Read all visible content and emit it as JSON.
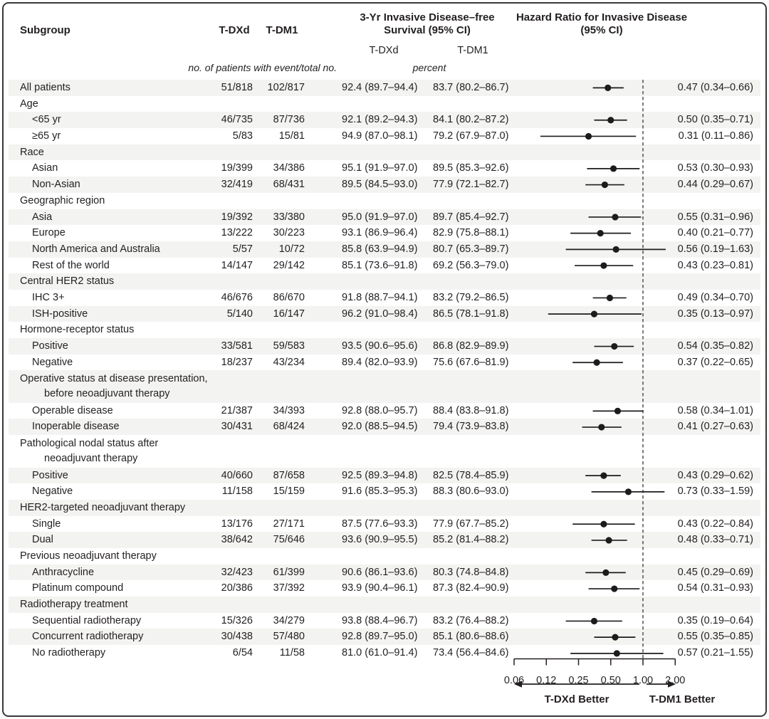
{
  "header": {
    "subgroup": "Subgroup",
    "tdxd": "T-DXd",
    "tdm1": "T-DM1",
    "survival_title_line1": "3-Yr Invasive Disease–free",
    "survival_title_line2": "Survival (95% CI)",
    "survival_sub_tdxd": "T-DXd",
    "survival_sub_tdm1": "T-DM1",
    "hazard_title_line1": "Hazard Ratio for Invasive Disease",
    "hazard_title_line2": "(95% CI)",
    "events_note": "no. of patients with event/total no.",
    "percent_note": "percent"
  },
  "axis": {
    "scale": "log2",
    "reference_value": 1.0,
    "tick_values": [
      0.0625,
      0.125,
      0.25,
      0.5,
      1.0,
      2.0
    ],
    "tick_labels": [
      "0.06",
      "0.12",
      "0.25",
      "0.50",
      "1.00",
      "2.00"
    ],
    "left_label": "T-DXd Better",
    "right_label": "T-DM1 Better"
  },
  "colors": {
    "row_shade": "#f3f3f1",
    "text": "#231f20",
    "marker": "#1c1c1c",
    "reference_line": "#444444"
  },
  "chart_data": {
    "type": "scatter",
    "subtype": "forest-plot",
    "title": "Hazard Ratio for Invasive Disease (95% CI)",
    "x_axis": {
      "scale": "log2",
      "range": [
        0.0625,
        2.0
      ],
      "ticks": [
        0.0625,
        0.125,
        0.25,
        0.5,
        1.0,
        2.0
      ],
      "tick_labels": [
        "0.06",
        "0.12",
        "0.25",
        "0.50",
        "1.00",
        "2.00"
      ],
      "reference_line": 1.0
    },
    "rows": [
      {
        "group": false,
        "indent": 0,
        "lines": 1,
        "label": "All patients",
        "e1": "51/818",
        "e2": "102/817",
        "s1": "92.4 (89.7–94.4)",
        "s2": "83.7 (80.2–86.7)",
        "hr": 0.47,
        "lo": 0.34,
        "hi": 0.66,
        "hr_text": "0.47 (0.34–0.66)"
      },
      {
        "group": true,
        "indent": 0,
        "lines": 1,
        "label": "Age"
      },
      {
        "group": false,
        "indent": 1,
        "lines": 1,
        "label": "<65 yr",
        "e1": "46/735",
        "e2": "87/736",
        "s1": "92.1 (89.2–94.3)",
        "s2": "84.1 (80.2–87.2)",
        "hr": 0.5,
        "lo": 0.35,
        "hi": 0.71,
        "hr_text": "0.50 (0.35–0.71)"
      },
      {
        "group": false,
        "indent": 1,
        "lines": 1,
        "label": "≥65 yr",
        "e1": "5/83",
        "e2": "15/81",
        "s1": "94.9 (87.0–98.1)",
        "s2": "79.2 (67.9–87.0)",
        "hr": 0.31,
        "lo": 0.11,
        "hi": 0.86,
        "hr_text": "0.31 (0.11–0.86)"
      },
      {
        "group": true,
        "indent": 0,
        "lines": 1,
        "label": "Race"
      },
      {
        "group": false,
        "indent": 1,
        "lines": 1,
        "label": "Asian",
        "e1": "19/399",
        "e2": "34/386",
        "s1": "95.1 (91.9–97.0)",
        "s2": "89.5 (85.3–92.6)",
        "hr": 0.53,
        "lo": 0.3,
        "hi": 0.93,
        "hr_text": "0.53 (0.30–0.93)"
      },
      {
        "group": false,
        "indent": 1,
        "lines": 1,
        "label": "Non-Asian",
        "e1": "32/419",
        "e2": "68/431",
        "s1": "89.5 (84.5–93.0)",
        "s2": "77.9 (72.1–82.7)",
        "hr": 0.44,
        "lo": 0.29,
        "hi": 0.67,
        "hr_text": "0.44 (0.29–0.67)"
      },
      {
        "group": true,
        "indent": 0,
        "lines": 1,
        "label": "Geographic region"
      },
      {
        "group": false,
        "indent": 1,
        "lines": 1,
        "label": "Asia",
        "e1": "19/392",
        "e2": "33/380",
        "s1": "95.0 (91.9–97.0)",
        "s2": "89.7 (85.4–92.7)",
        "hr": 0.55,
        "lo": 0.31,
        "hi": 0.96,
        "hr_text": "0.55 (0.31–0.96)"
      },
      {
        "group": false,
        "indent": 1,
        "lines": 1,
        "label": "Europe",
        "e1": "13/222",
        "e2": "30/223",
        "s1": "93.1 (86.9–96.4)",
        "s2": "82.9 (75.8–88.1)",
        "hr": 0.4,
        "lo": 0.21,
        "hi": 0.77,
        "hr_text": "0.40 (0.21–0.77)"
      },
      {
        "group": false,
        "indent": 1,
        "lines": 1,
        "label": "North America and Australia",
        "e1": "5/57",
        "e2": "10/72",
        "s1": "85.8 (63.9–94.9)",
        "s2": "80.7 (65.3–89.7)",
        "hr": 0.56,
        "lo": 0.19,
        "hi": 1.63,
        "hr_text": "0.56 (0.19–1.63)"
      },
      {
        "group": false,
        "indent": 1,
        "lines": 1,
        "label": "Rest of the world",
        "e1": "14/147",
        "e2": "29/142",
        "s1": "85.1 (73.6–91.8)",
        "s2": "69.2 (56.3–79.0)",
        "hr": 0.43,
        "lo": 0.23,
        "hi": 0.81,
        "hr_text": "0.43 (0.23–0.81)"
      },
      {
        "group": true,
        "indent": 0,
        "lines": 1,
        "label": "Central HER2 status"
      },
      {
        "group": false,
        "indent": 1,
        "lines": 1,
        "label": "IHC 3+",
        "e1": "46/676",
        "e2": "86/670",
        "s1": "91.8 (88.7–94.1)",
        "s2": "83.2 (79.2–86.5)",
        "hr": 0.49,
        "lo": 0.34,
        "hi": 0.7,
        "hr_text": "0.49 (0.34–0.70)"
      },
      {
        "group": false,
        "indent": 1,
        "lines": 1,
        "label": "ISH-positive",
        "e1": "5/140",
        "e2": "16/147",
        "s1": "96.2 (91.0–98.4)",
        "s2": "86.5 (78.1–91.8)",
        "hr": 0.35,
        "lo": 0.13,
        "hi": 0.97,
        "hr_text": "0.35 (0.13–0.97)"
      },
      {
        "group": true,
        "indent": 0,
        "lines": 1,
        "label": "Hormone-receptor status"
      },
      {
        "group": false,
        "indent": 1,
        "lines": 1,
        "label": "Positive",
        "e1": "33/581",
        "e2": "59/583",
        "s1": "93.5 (90.6–95.6)",
        "s2": "86.8 (82.9–89.9)",
        "hr": 0.54,
        "lo": 0.35,
        "hi": 0.82,
        "hr_text": "0.54 (0.35–0.82)"
      },
      {
        "group": false,
        "indent": 1,
        "lines": 1,
        "label": "Negative",
        "e1": "18/237",
        "e2": "43/234",
        "s1": "89.4 (82.0–93.9)",
        "s2": "75.6 (67.6–81.9)",
        "hr": 0.37,
        "lo": 0.22,
        "hi": 0.65,
        "hr_text": "0.37 (0.22–0.65)"
      },
      {
        "group": true,
        "indent": 0,
        "lines": 2,
        "label": "Operative status at disease presentation,",
        "label2": "before neoadjuvant therapy"
      },
      {
        "group": false,
        "indent": 1,
        "lines": 1,
        "label": "Operable disease",
        "e1": "21/387",
        "e2": "34/393",
        "s1": "92.8 (88.0–95.7)",
        "s2": "88.4 (83.8–91.8)",
        "hr": 0.58,
        "lo": 0.34,
        "hi": 1.01,
        "hr_text": "0.58 (0.34–1.01)"
      },
      {
        "group": false,
        "indent": 1,
        "lines": 1,
        "label": "Inoperable disease",
        "e1": "30/431",
        "e2": "68/424",
        "s1": "92.0 (88.5–94.5)",
        "s2": "79.4 (73.9–83.8)",
        "hr": 0.41,
        "lo": 0.27,
        "hi": 0.63,
        "hr_text": "0.41 (0.27–0.63)"
      },
      {
        "group": true,
        "indent": 0,
        "lines": 2,
        "label": "Pathological nodal status after",
        "label2": "neoadjuvant therapy"
      },
      {
        "group": false,
        "indent": 1,
        "lines": 1,
        "label": "Positive",
        "e1": "40/660",
        "e2": "87/658",
        "s1": "92.5 (89.3–94.8)",
        "s2": "82.5 (78.4–85.9)",
        "hr": 0.43,
        "lo": 0.29,
        "hi": 0.62,
        "hr_text": "0.43 (0.29–0.62)"
      },
      {
        "group": false,
        "indent": 1,
        "lines": 1,
        "label": "Negative",
        "e1": "11/158",
        "e2": "15/159",
        "s1": "91.6 (85.3–95.3)",
        "s2": "88.3 (80.6–93.0)",
        "hr": 0.73,
        "lo": 0.33,
        "hi": 1.59,
        "hr_text": "0.73 (0.33–1.59)"
      },
      {
        "group": true,
        "indent": 0,
        "lines": 1,
        "label": "HER2-targeted neoadjuvant therapy"
      },
      {
        "group": false,
        "indent": 1,
        "lines": 1,
        "label": "Single",
        "e1": "13/176",
        "e2": "27/171",
        "s1": "87.5 (77.6–93.3)",
        "s2": "77.9 (67.7–85.2)",
        "hr": 0.43,
        "lo": 0.22,
        "hi": 0.84,
        "hr_text": "0.43 (0.22–0.84)"
      },
      {
        "group": false,
        "indent": 1,
        "lines": 1,
        "label": "Dual",
        "e1": "38/642",
        "e2": "75/646",
        "s1": "93.6 (90.9–95.5)",
        "s2": "85.2 (81.4–88.2)",
        "hr": 0.48,
        "lo": 0.33,
        "hi": 0.71,
        "hr_text": "0.48 (0.33–0.71)"
      },
      {
        "group": true,
        "indent": 0,
        "lines": 1,
        "label": "Previous neoadjuvant therapy"
      },
      {
        "group": false,
        "indent": 1,
        "lines": 1,
        "label": "Anthracycline",
        "e1": "32/423",
        "e2": "61/399",
        "s1": "90.6 (86.1–93.6)",
        "s2": "80.3 (74.8–84.8)",
        "hr": 0.45,
        "lo": 0.29,
        "hi": 0.69,
        "hr_text": "0.45 (0.29–0.69)"
      },
      {
        "group": false,
        "indent": 1,
        "lines": 1,
        "label": "Platinum compound",
        "e1": "20/386",
        "e2": "37/392",
        "s1": "93.9 (90.4–96.1)",
        "s2": "87.3 (82.4–90.9)",
        "hr": 0.54,
        "lo": 0.31,
        "hi": 0.93,
        "hr_text": "0.54 (0.31–0.93)"
      },
      {
        "group": true,
        "indent": 0,
        "lines": 1,
        "label": "Radiotherapy treatment"
      },
      {
        "group": false,
        "indent": 1,
        "lines": 1,
        "label": "Sequential radiotherapy",
        "e1": "15/326",
        "e2": "34/279",
        "s1": "93.8 (88.4–96.7)",
        "s2": "83.2 (76.4–88.2)",
        "hr": 0.35,
        "lo": 0.19,
        "hi": 0.64,
        "hr_text": "0.35 (0.19–0.64)"
      },
      {
        "group": false,
        "indent": 1,
        "lines": 1,
        "label": "Concurrent radiotherapy",
        "e1": "30/438",
        "e2": "57/480",
        "s1": "92.8 (89.7–95.0)",
        "s2": "85.1 (80.6–88.6)",
        "hr": 0.55,
        "lo": 0.35,
        "hi": 0.85,
        "hr_text": "0.55 (0.35–0.85)"
      },
      {
        "group": false,
        "indent": 1,
        "lines": 1,
        "label": "No radiotherapy",
        "e1": "6/54",
        "e2": "11/58",
        "s1": "81.0 (61.0–91.4)",
        "s2": "73.4 (56.4–84.6)",
        "hr": 0.57,
        "lo": 0.21,
        "hi": 1.55,
        "hr_text": "0.57 (0.21–1.55)"
      }
    ]
  }
}
